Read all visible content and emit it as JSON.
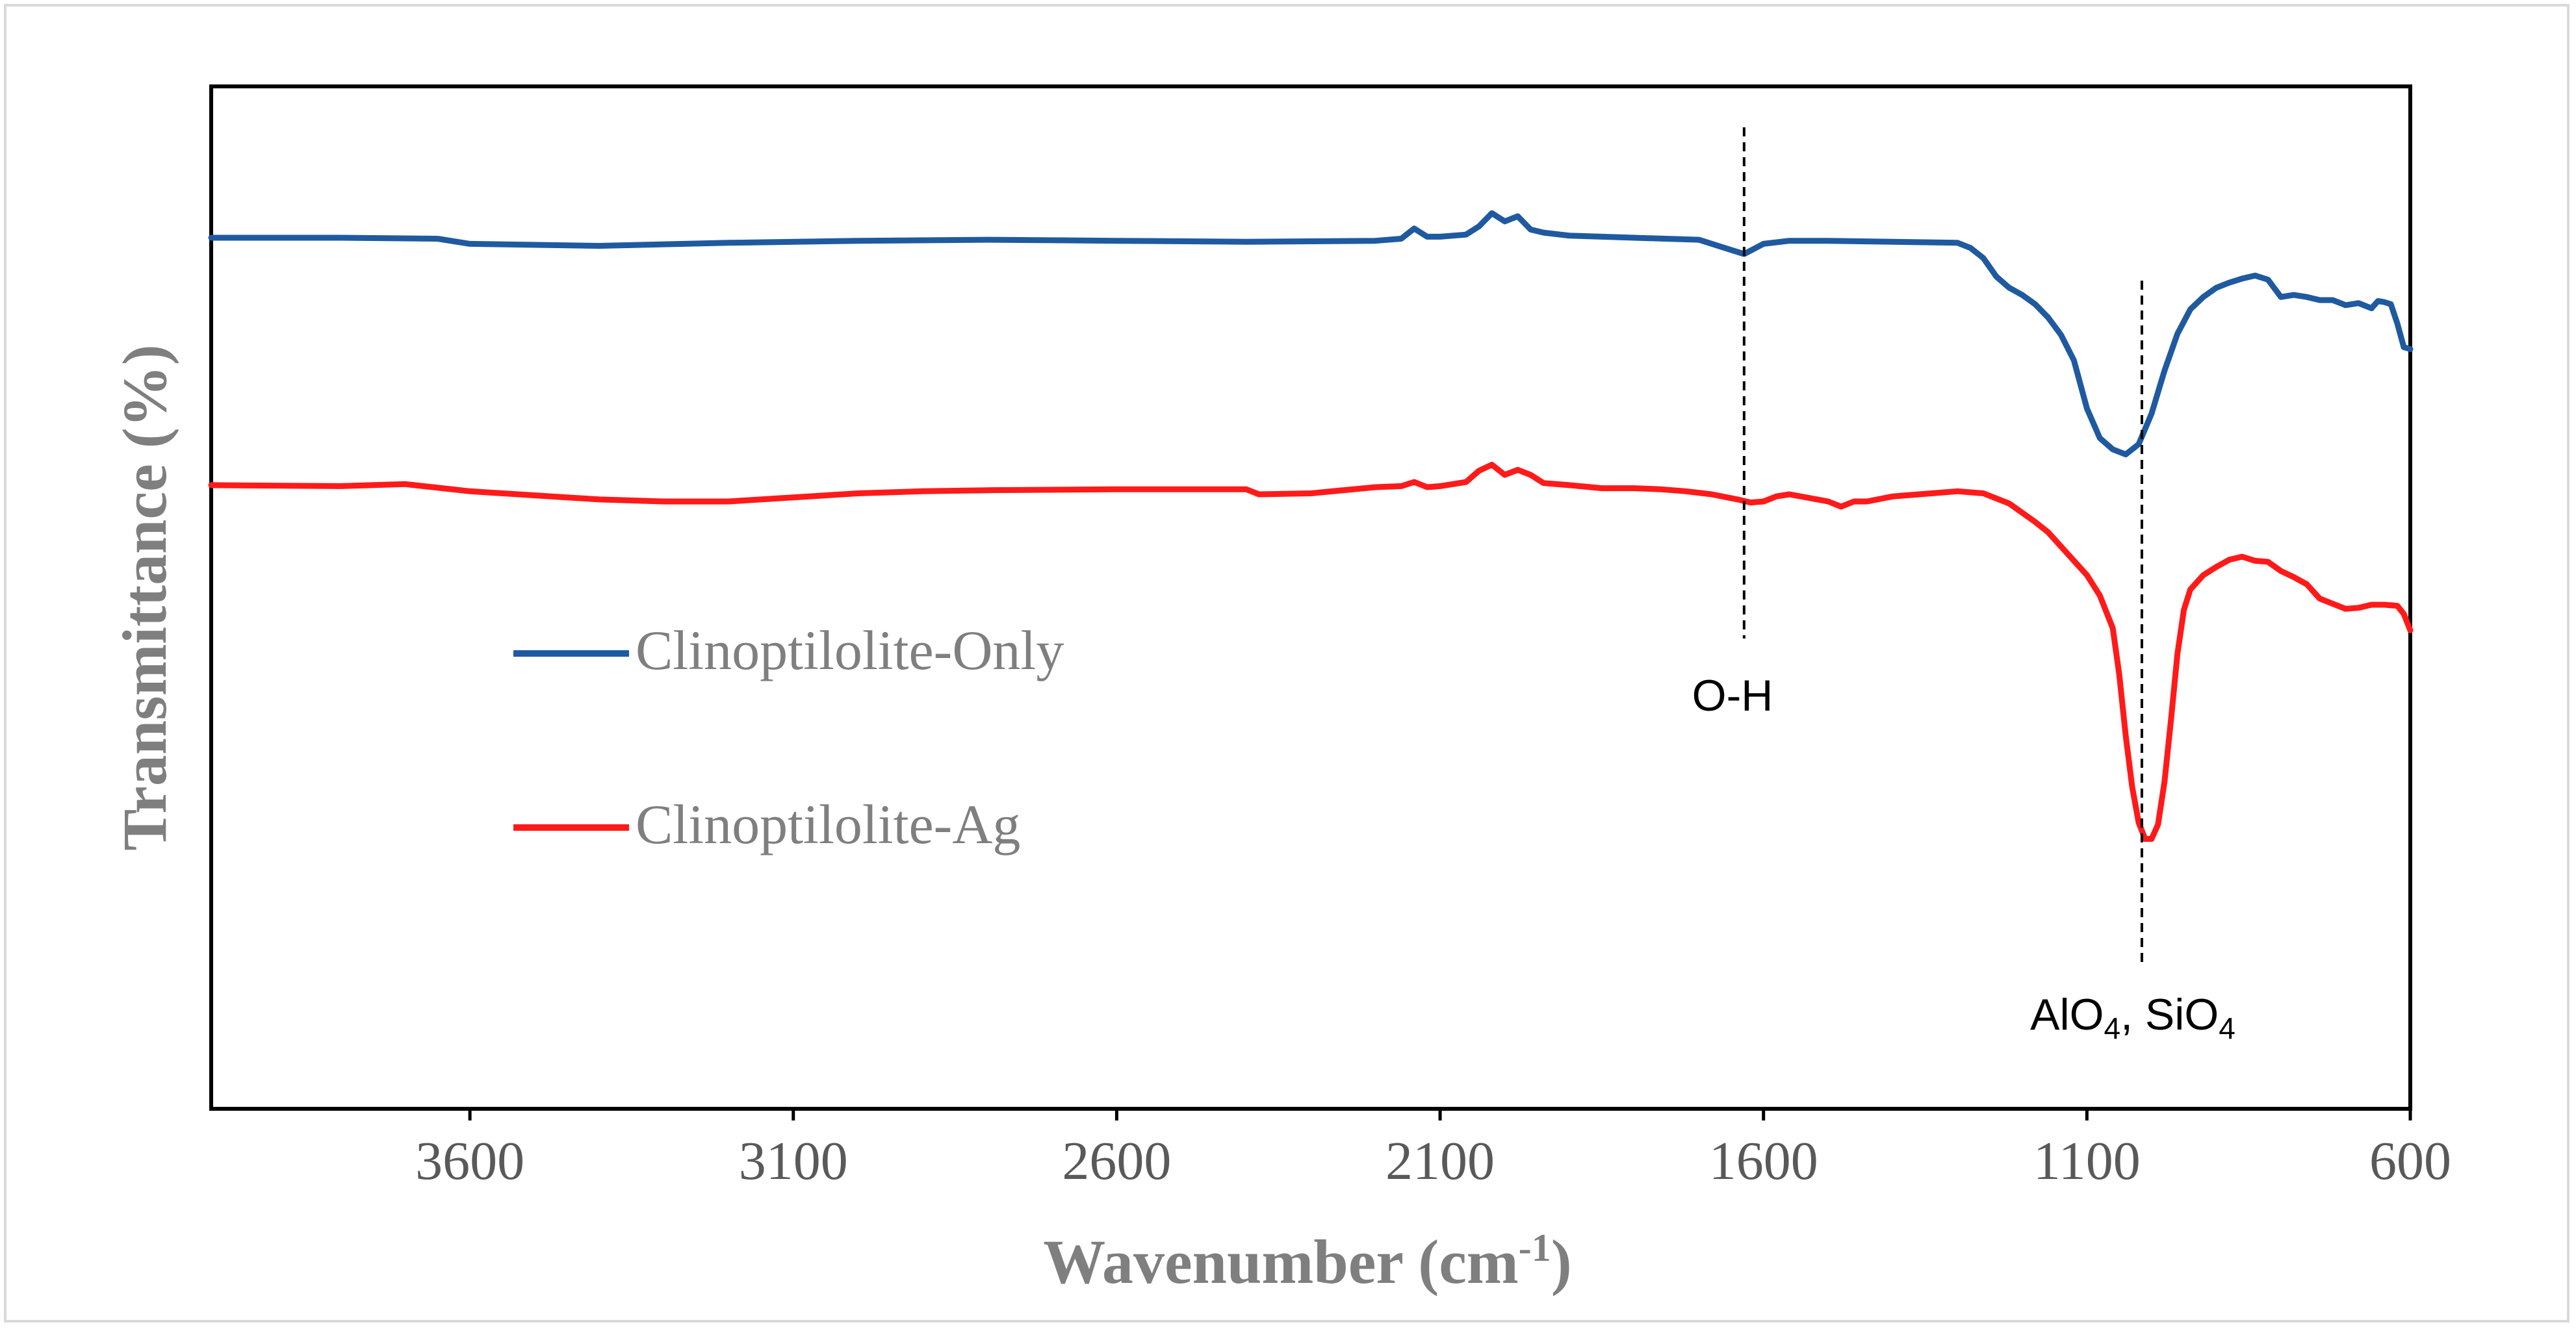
{
  "chart_data": {
    "type": "line",
    "title": "",
    "xlabel": "Wavenumber (cm",
    "xlabel_sup": "-1",
    "xlabel_close": ")",
    "ylabel": "Transmittance (%)",
    "xlim": [
      4000,
      600
    ],
    "ylim": [
      0,
      100
    ],
    "x_ticks": [
      3600,
      3100,
      2600,
      2100,
      1600,
      1100,
      600
    ],
    "x_tick_labels": [
      "3600",
      "3100",
      "2600",
      "2100",
      "1600",
      "1100",
      "600"
    ],
    "y_ticks_shown": false,
    "legend": {
      "placement": "center-left"
    },
    "series": [
      {
        "name": "Clinoptilolite-Only",
        "color": "#1f5aa0",
        "x": [
          4000,
          3800,
          3650,
          3600,
          3400,
          3200,
          3000,
          2800,
          2600,
          2400,
          2200,
          2160,
          2140,
          2120,
          2100,
          2060,
          2040,
          2020,
          2000,
          1980,
          1960,
          1940,
          1900,
          1850,
          1800,
          1700,
          1650,
          1630,
          1600,
          1560,
          1500,
          1400,
          1300,
          1280,
          1260,
          1240,
          1220,
          1200,
          1180,
          1160,
          1140,
          1120,
          1100,
          1080,
          1060,
          1040,
          1020,
          1000,
          980,
          960,
          940,
          920,
          900,
          880,
          860,
          840,
          820,
          800,
          780,
          760,
          740,
          720,
          700,
          680,
          660,
          650,
          640,
          630,
          620,
          610,
          600
        ],
        "y": [
          85.2,
          85.2,
          85.1,
          84.6,
          84.4,
          84.7,
          84.9,
          85.0,
          84.9,
          84.8,
          84.9,
          85.1,
          86.1,
          85.3,
          85.3,
          85.5,
          86.3,
          87.6,
          86.8,
          87.3,
          86.0,
          85.7,
          85.4,
          85.3,
          85.2,
          85.0,
          84.0,
          83.6,
          84.6,
          84.9,
          84.9,
          84.8,
          84.7,
          84.2,
          83.2,
          81.4,
          80.3,
          79.6,
          78.7,
          77.4,
          75.7,
          73.2,
          68.5,
          65.6,
          64.5,
          64.0,
          65.0,
          68.0,
          72.2,
          75.8,
          78.2,
          79.4,
          80.3,
          80.8,
          81.2,
          81.5,
          81.1,
          79.4,
          79.6,
          79.4,
          79.1,
          79.1,
          78.6,
          78.8,
          78.3,
          79.0,
          78.9,
          78.7,
          76.8,
          74.5,
          74.3
        ]
      },
      {
        "name": "Clinoptilolite-Ag",
        "color": "#ff1a1a",
        "x": [
          4000,
          3800,
          3700,
          3600,
          3400,
          3300,
          3200,
          3100,
          3000,
          2900,
          2800,
          2600,
          2400,
          2380,
          2300,
          2200,
          2160,
          2140,
          2120,
          2100,
          2060,
          2040,
          2020,
          2000,
          1980,
          1960,
          1940,
          1900,
          1850,
          1800,
          1760,
          1720,
          1680,
          1640,
          1620,
          1600,
          1580,
          1560,
          1500,
          1480,
          1460,
          1440,
          1400,
          1300,
          1260,
          1220,
          1180,
          1160,
          1140,
          1120,
          1100,
          1080,
          1060,
          1050,
          1040,
          1030,
          1020,
          1010,
          1000,
          990,
          980,
          970,
          960,
          950,
          940,
          920,
          900,
          880,
          860,
          840,
          820,
          800,
          780,
          760,
          740,
          720,
          700,
          680,
          660,
          640,
          620,
          610,
          600
        ],
        "y": [
          61.0,
          60.9,
          61.1,
          60.4,
          59.6,
          59.4,
          59.4,
          59.8,
          60.2,
          60.4,
          60.5,
          60.6,
          60.6,
          60.1,
          60.2,
          60.8,
          60.9,
          61.3,
          60.8,
          60.9,
          61.3,
          62.4,
          63.0,
          62.0,
          62.5,
          62.0,
          61.2,
          61.0,
          60.7,
          60.7,
          60.6,
          60.4,
          60.1,
          59.6,
          59.3,
          59.4,
          59.9,
          60.1,
          59.4,
          58.9,
          59.4,
          59.4,
          59.9,
          60.4,
          60.2,
          59.2,
          57.4,
          56.4,
          55.0,
          53.6,
          52.2,
          50.2,
          47.0,
          42.5,
          36.5,
          31.5,
          28.0,
          26.4,
          26.4,
          27.8,
          32.0,
          38.0,
          44.5,
          48.8,
          50.8,
          52.2,
          53.0,
          53.7,
          54.0,
          53.6,
          53.5,
          52.6,
          52.0,
          51.3,
          49.9,
          49.4,
          48.9,
          49.0,
          49.3,
          49.3,
          49.2,
          48.4,
          46.8
        ]
      }
    ],
    "annotations": [
      {
        "label": "O-H",
        "x": 1630,
        "y_from": 46.0,
        "y_to": 96.0
      },
      {
        "label_main": "AlO",
        "sub1": "4",
        "label_mid": ", SiO",
        "sub2": "4",
        "x": 1015,
        "y_from": 14.0,
        "y_to": 81.0
      }
    ]
  }
}
